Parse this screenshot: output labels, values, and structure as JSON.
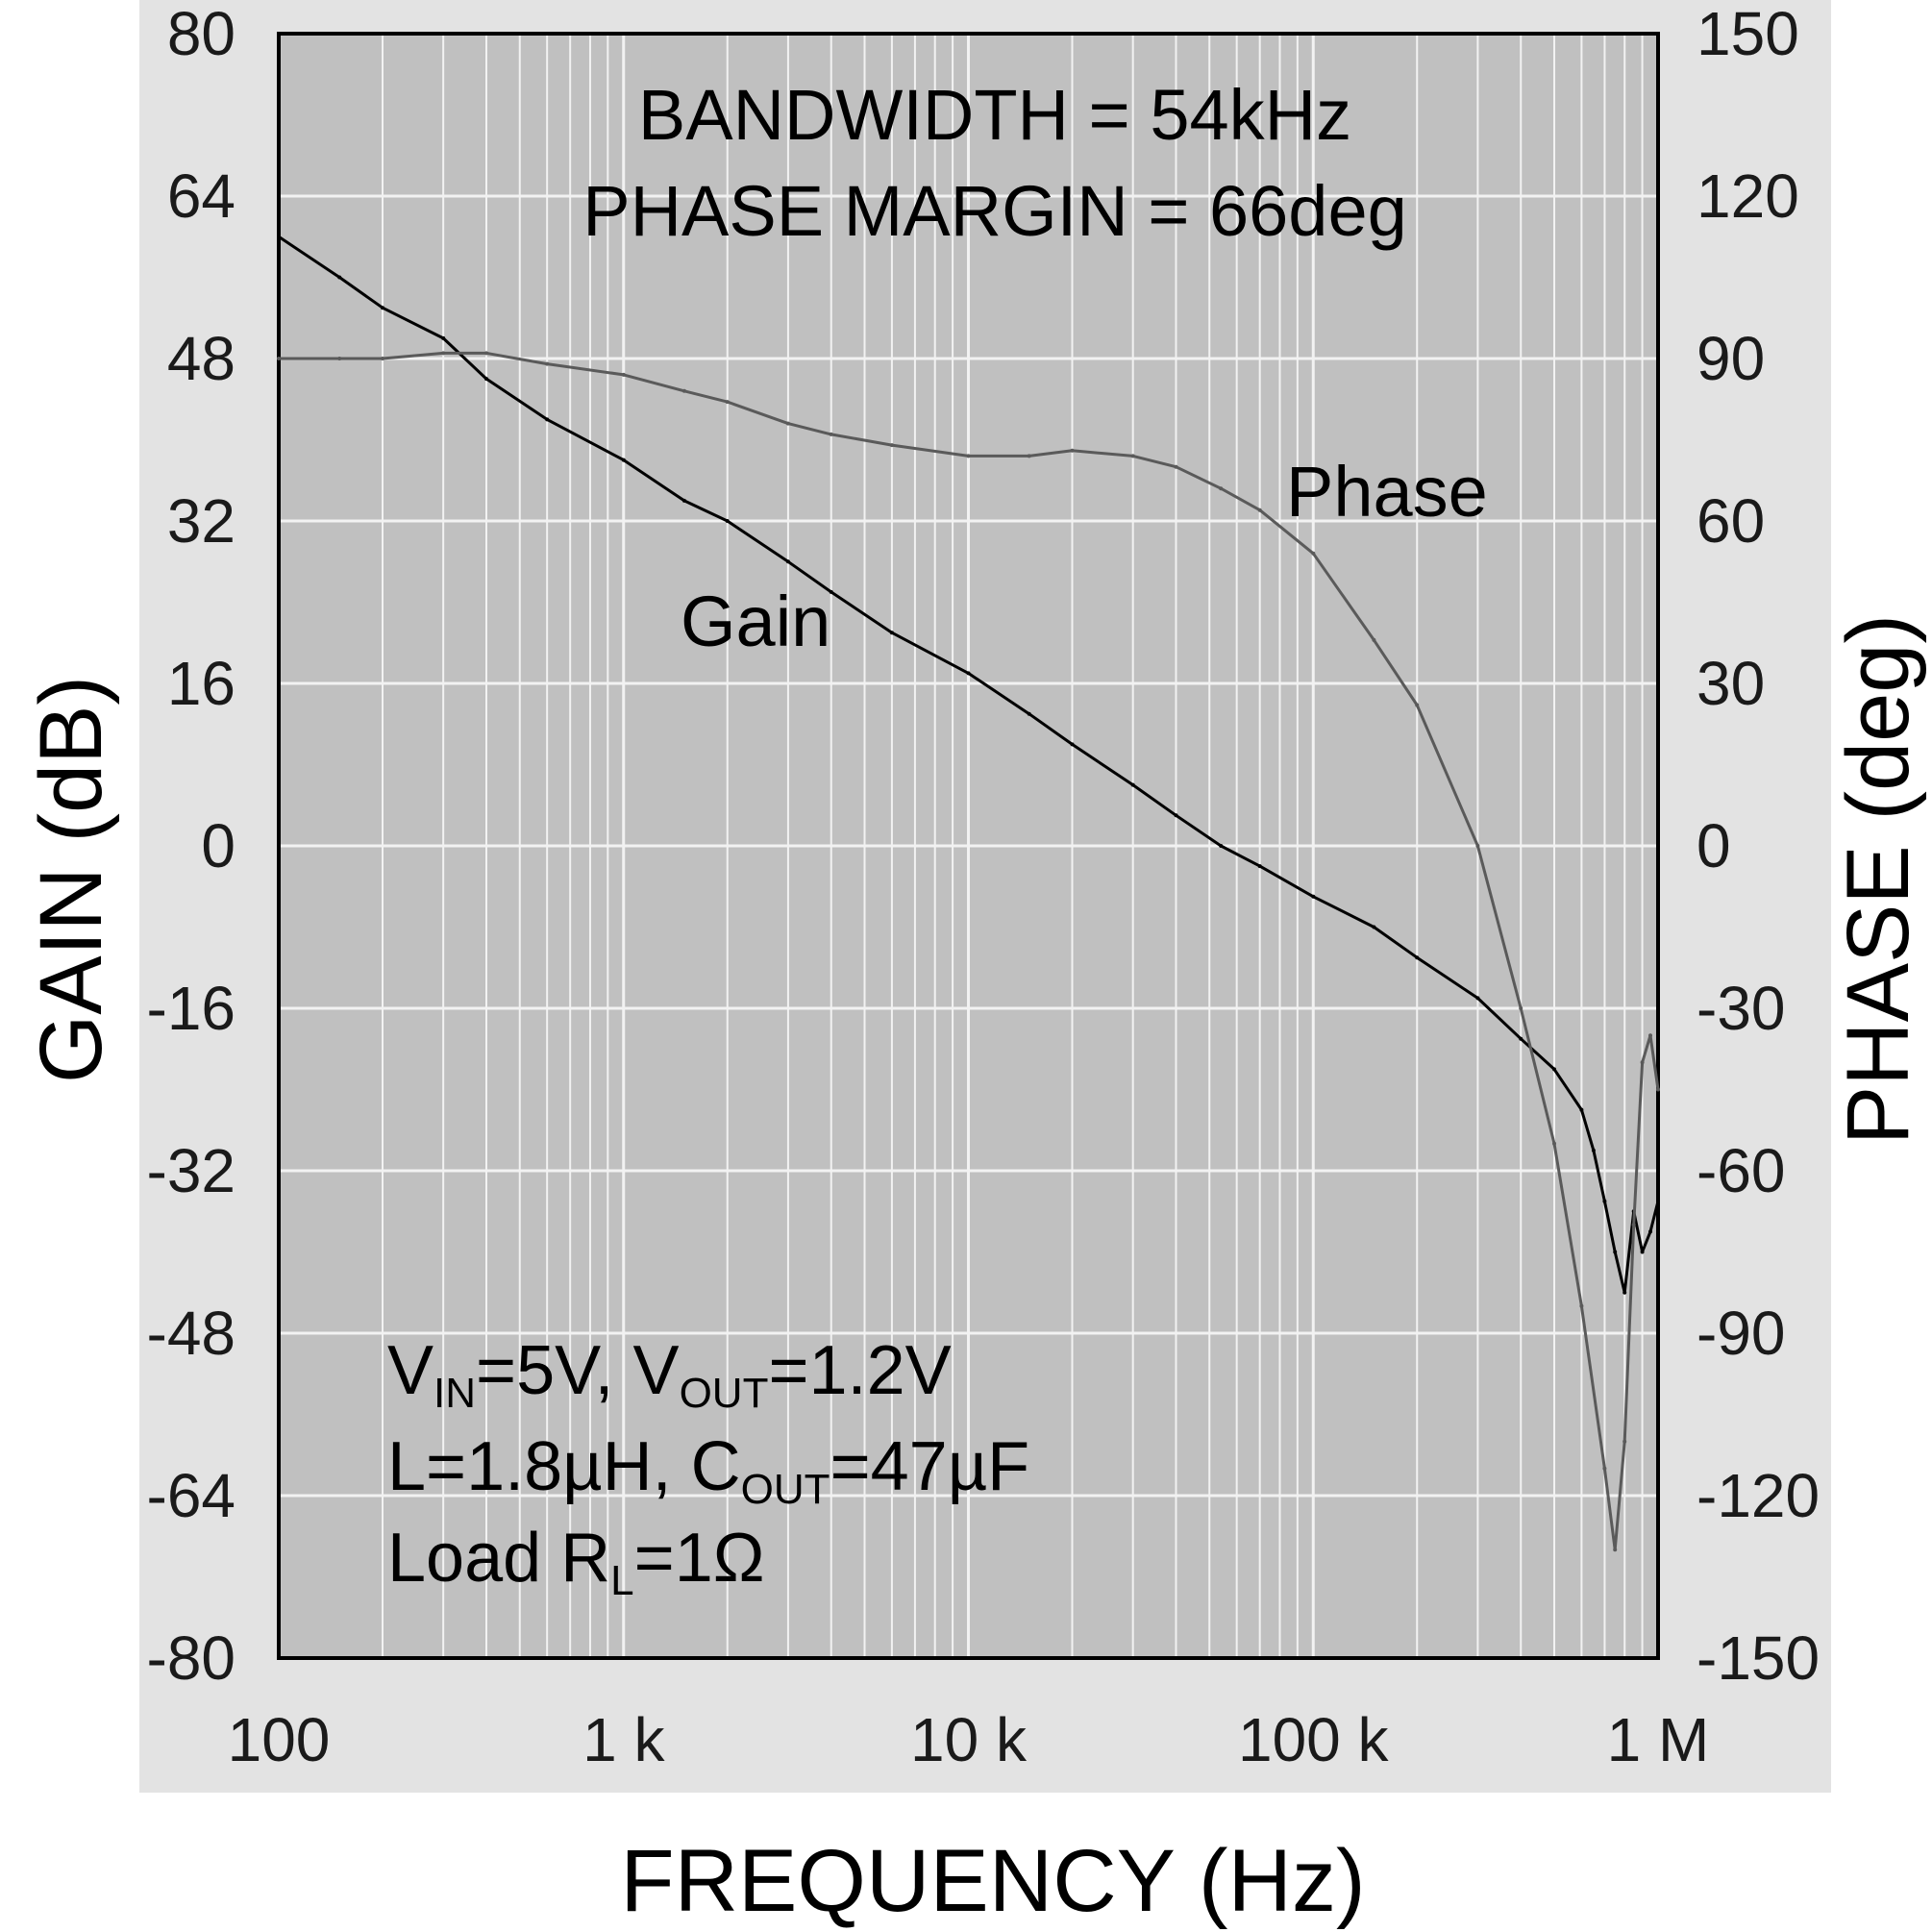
{
  "chart_data": {
    "type": "line",
    "x_scale": "log",
    "xlabel": "FREQUENCY (Hz)",
    "ylabel_left": "GAIN (dB)",
    "ylabel_right": "PHASE (deg)",
    "xlim": [
      100,
      1000000
    ],
    "ylim_left": [
      -80,
      80
    ],
    "ylim_right": [
      -150,
      150
    ],
    "x_ticks": [
      {
        "value": 100,
        "label": "100"
      },
      {
        "value": 1000,
        "label": "1 k"
      },
      {
        "value": 10000,
        "label": "10 k"
      },
      {
        "value": 100000,
        "label": "100 k"
      },
      {
        "value": 1000000,
        "label": "1 M"
      }
    ],
    "left_ticks": [
      80,
      64,
      48,
      32,
      16,
      0,
      -16,
      -32,
      -48,
      -64,
      -80
    ],
    "right_ticks": [
      150,
      120,
      90,
      60,
      30,
      0,
      -30,
      -60,
      -90,
      -120,
      -150
    ],
    "grid": true,
    "series": [
      {
        "name": "Gain",
        "axis": "left",
        "color": "#000000",
        "x": [
          100,
          150,
          200,
          300,
          400,
          600,
          1000,
          1500,
          2000,
          3000,
          4000,
          6000,
          10000,
          15000,
          20000,
          30000,
          40000,
          54000,
          70000,
          100000,
          150000,
          200000,
          300000,
          400000,
          500000,
          600000,
          650000,
          700000,
          750000,
          800000,
          850000,
          900000,
          950000,
          1000000
        ],
        "values": [
          60,
          56,
          53,
          50,
          46,
          42,
          38,
          34,
          32,
          28,
          25,
          21,
          17,
          13,
          10,
          6,
          3,
          0,
          -2,
          -5,
          -8,
          -11,
          -15,
          -19,
          -22,
          -26,
          -30,
          -35,
          -40,
          -44,
          -36,
          -40,
          -38,
          -35
        ]
      },
      {
        "name": "Phase",
        "axis": "right",
        "color": "#5a5a5a",
        "x": [
          100,
          150,
          200,
          300,
          400,
          600,
          1000,
          1500,
          2000,
          3000,
          4000,
          6000,
          10000,
          15000,
          20000,
          30000,
          40000,
          54000,
          70000,
          100000,
          150000,
          200000,
          300000,
          400000,
          500000,
          600000,
          700000,
          750000,
          800000,
          850000,
          900000,
          950000,
          1000000
        ],
        "values": [
          90,
          90,
          90,
          91,
          91,
          89,
          87,
          84,
          82,
          78,
          76,
          74,
          72,
          72,
          73,
          72,
          70,
          66,
          62,
          54,
          38,
          26,
          0,
          -30,
          -55,
          -85,
          -115,
          -130,
          -110,
          -70,
          -40,
          -35,
          -45
        ]
      }
    ],
    "annotations": {
      "bandwidth": "BANDWIDTH = 54kHz",
      "phase_margin": "PHASE MARGIN = 66deg",
      "gain_label": "Gain",
      "phase_label": "Phase"
    },
    "conditions": {
      "line1": {
        "p1": "V",
        "s1": "IN",
        "p2": "=5V, V",
        "s2": "OUT",
        "p3": "=1.2V"
      },
      "line2": {
        "p1": "L=1.8µH, C",
        "s1": "OUT",
        "p2": "=47µF"
      },
      "line3": {
        "p1": "Load R",
        "s1": "L",
        "p2": "=1Ω"
      }
    },
    "colors": {
      "frame": "#e3e3e3",
      "plot_bg": "#c0c0c0",
      "grid": "#f2f2f2"
    }
  }
}
